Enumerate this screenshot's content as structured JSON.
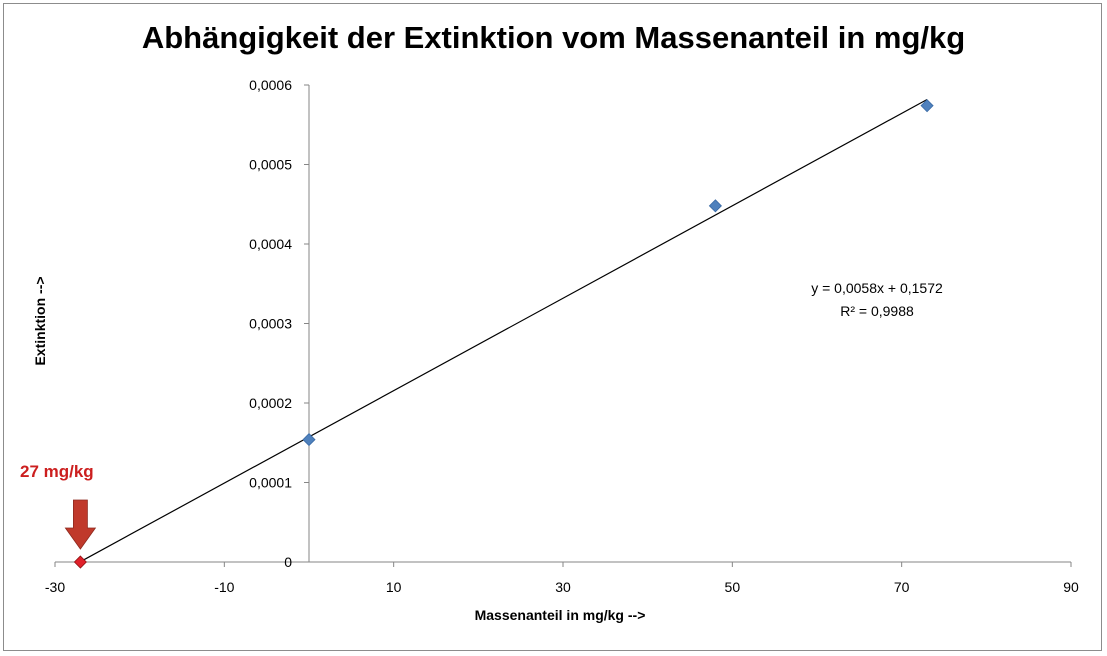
{
  "chart_data": {
    "type": "scatter",
    "title": "Abhängigkeit der Extinktion vom Massenanteil in mg/kg",
    "xlabel": "Massenanteil in mg/kg -->",
    "ylabel": "Extinktion -->",
    "xlim": [
      -30,
      90
    ],
    "ylim": [
      0,
      0.0006
    ],
    "x_ticks": [
      -30,
      -10,
      10,
      30,
      50,
      70,
      90
    ],
    "x_tick_labels": [
      "-30",
      "-10",
      "10",
      "30",
      "50",
      "70",
      "90"
    ],
    "y_ticks": [
      0,
      0.0001,
      0.0002,
      0.0003,
      0.0004,
      0.0005,
      0.0006
    ],
    "y_tick_labels": [
      "0",
      "0,0001",
      "0,0002",
      "0,0003",
      "0,0004",
      "0,0005",
      "0,0006"
    ],
    "grid": false,
    "legend": "none",
    "series": [
      {
        "marker": "diamond",
        "color": "#4f81bd",
        "points": [
          {
            "x": 0,
            "y": 0.000154
          },
          {
            "x": 48,
            "y": 0.000448
          },
          {
            "x": 73,
            "y": 0.000574
          }
        ]
      }
    ],
    "trendline": {
      "type": "linear",
      "color": "#000000",
      "x_range": [
        -27,
        73
      ],
      "equation": "y = 0,0058x + 0,1572",
      "r_squared": "R² = 0,9988"
    },
    "annotation": {
      "text": "27 mg/kg",
      "x": -27,
      "y": 0,
      "color": "#cc1f1f",
      "arrow_color": "#c0392b",
      "point_color": "#e0202a"
    }
  }
}
